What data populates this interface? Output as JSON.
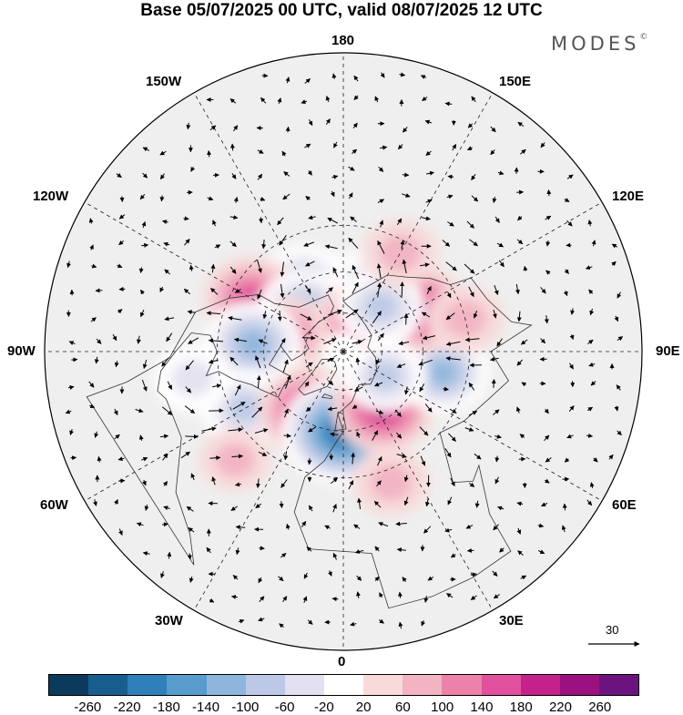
{
  "title": "Base 05/07/2025 00 UTC, valid 08/07/2025 12 UTC",
  "brand": {
    "name": "MODES",
    "mark": "©"
  },
  "longitude_labels": {
    "top": "180",
    "bottom": "0",
    "left": "90W",
    "right": "90E",
    "upper_left_1": "150W",
    "upper_left_2": "120W",
    "upper_right_1": "150E",
    "upper_right_2": "120E",
    "lower_left_1": "60W",
    "lower_left_2": "30W",
    "lower_right_1": "60E",
    "lower_right_2": "30E"
  },
  "wind_scale": {
    "label": "30"
  },
  "colorbar": {
    "colors": [
      "#0b3a5c",
      "#175e8f",
      "#2f80b8",
      "#579ccc",
      "#8eb6dc",
      "#bcc9e6",
      "#e3e1ef",
      "#ffffff",
      "#f8dada",
      "#f2b3c3",
      "#ec82aa",
      "#e0509c",
      "#c4228a",
      "#9c117f",
      "#6b1480"
    ],
    "ticks": [
      "-260",
      "-220",
      "-180",
      "-140",
      "-100",
      "-60",
      "-20",
      "20",
      "60",
      "100",
      "140",
      "180",
      "220",
      "260"
    ]
  },
  "anomaly_cells": [
    {
      "lon": 165,
      "lat": 55,
      "v": -60
    },
    {
      "lon": -150,
      "lat": 50,
      "v": -100
    },
    {
      "lon": -120,
      "lat": 38,
      "v": 140
    },
    {
      "lon": -135,
      "lat": 62,
      "v": -140
    },
    {
      "lon": -110,
      "lat": 62,
      "v": 80
    },
    {
      "lon": -95,
      "lat": 45,
      "v": -140
    },
    {
      "lon": -60,
      "lat": 35,
      "v": -100
    },
    {
      "lon": -30,
      "lat": 55,
      "v": 160
    },
    {
      "lon": 0,
      "lat": 50,
      "v": -240
    },
    {
      "lon": 35,
      "lat": 55,
      "v": 160
    },
    {
      "lon": 90,
      "lat": 65,
      "v": 120
    },
    {
      "lon": 78,
      "lat": 40,
      "v": -120
    },
    {
      "lon": 120,
      "lat": 48,
      "v": 160
    },
    {
      "lon": 150,
      "lat": 72,
      "v": 120
    },
    {
      "lon": 140,
      "lat": 60,
      "v": -100
    },
    {
      "lon": 60,
      "lat": 65,
      "v": -80
    },
    {
      "lon": 105,
      "lat": 30,
      "v": 60
    },
    {
      "lon": 150,
      "lat": 35,
      "v": 60
    },
    {
      "lon": -80,
      "lat": 20,
      "v": -60
    },
    {
      "lon": -45,
      "lat": 20,
      "v": 40
    },
    {
      "lon": 20,
      "lat": 25,
      "v": 60
    }
  ]
}
